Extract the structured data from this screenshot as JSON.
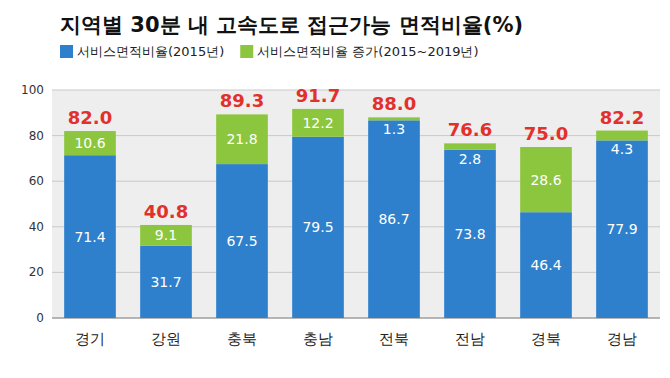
{
  "chart_data": {
    "type": "bar",
    "stacked": true,
    "data_labels": true,
    "grid": true,
    "legend": "top",
    "title": "지역별 30분 내 고속도로 접근가능 면적비율(%)",
    "categories": [
      "경기",
      "강원",
      "충북",
      "충남",
      "전북",
      "전남",
      "경북",
      "경남"
    ],
    "series": [
      {
        "name": "서비스면적비율(2015년)",
        "color": "#2f80cc",
        "values": [
          71.4,
          31.7,
          67.5,
          79.5,
          86.7,
          73.8,
          46.4,
          77.9
        ]
      },
      {
        "name": "서비스면적비율 증가(2015~2019년)",
        "color": "#8cc63e",
        "values": [
          10.6,
          9.1,
          21.8,
          12.2,
          1.3,
          2.8,
          28.6,
          4.3
        ]
      }
    ],
    "totals": {
      "color": "#e2302a",
      "values": [
        82.0,
        40.8,
        89.3,
        91.7,
        88.0,
        76.6,
        75.0,
        82.2
      ],
      "value_labels": [
        "82.0",
        "40.8",
        "89.3",
        "91.7",
        "88.0",
        "76.6",
        "75.0",
        "82.2"
      ]
    },
    "ylim": [
      0,
      100
    ],
    "yticks": [
      0,
      20,
      40,
      60,
      80,
      100
    ]
  }
}
